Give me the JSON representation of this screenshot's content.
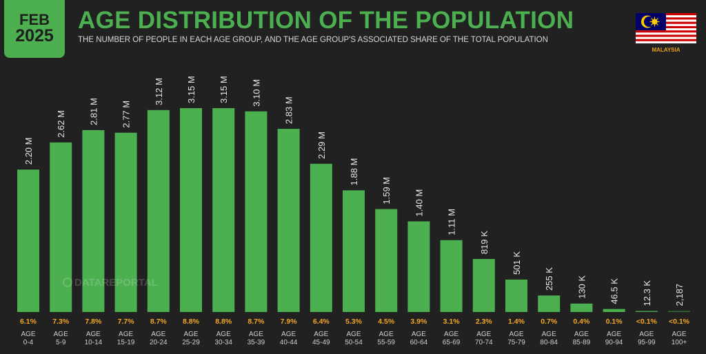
{
  "header": {
    "date_month": "FEB",
    "date_year": "2025",
    "title": "AGE DISTRIBUTION OF THE POPULATION",
    "subtitle": "THE NUMBER OF PEOPLE IN EACH AGE GROUP, AND THE AGE GROUP'S ASSOCIATED SHARE OF THE TOTAL POPULATION",
    "country": "MALAYSIA",
    "flag_icon": "malaysia-flag-icon"
  },
  "watermark": "DATAREPORTAL",
  "colors": {
    "background": "#212121",
    "bar": "#4caf50",
    "title": "#4caf50",
    "percent": "#f5a623",
    "country": "#e8a020"
  },
  "chart_data": {
    "type": "bar",
    "title": "AGE DISTRIBUTION OF THE POPULATION",
    "xlabel": "",
    "ylabel": "",
    "ylim": [
      0,
      3150000
    ],
    "grid": false,
    "categories": [
      "0-4",
      "5-9",
      "10-14",
      "15-19",
      "20-24",
      "25-29",
      "30-34",
      "35-39",
      "40-44",
      "45-49",
      "50-54",
      "55-59",
      "60-64",
      "65-69",
      "70-74",
      "75-79",
      "80-84",
      "85-89",
      "90-94",
      "95-99",
      "100+"
    ],
    "category_prefix": "AGE",
    "values": [
      2200000,
      2620000,
      2810000,
      2770000,
      3120000,
      3150000,
      3150000,
      3100000,
      2830000,
      2290000,
      1880000,
      1590000,
      1400000,
      1110000,
      819000,
      501000,
      255000,
      130000,
      46500,
      12300,
      2187
    ],
    "value_labels": [
      "2.20 M",
      "2.62 M",
      "2.81 M",
      "2.77 M",
      "3.12 M",
      "3.15 M",
      "3.15 M",
      "3.10 M",
      "2.83 M",
      "2.29 M",
      "1.88 M",
      "1.59 M",
      "1.40 M",
      "1.11 M",
      "819 K",
      "501 K",
      "255 K",
      "130 K",
      "46.5 K",
      "12.3 K",
      "2,187"
    ],
    "share_labels": [
      "6.1%",
      "7.3%",
      "7.8%",
      "7.7%",
      "8.7%",
      "8.8%",
      "8.8%",
      "8.7%",
      "7.9%",
      "6.4%",
      "5.3%",
      "4.5%",
      "3.9%",
      "3.1%",
      "2.3%",
      "1.4%",
      "0.7%",
      "0.4%",
      "0.1%",
      "<0.1%",
      "<0.1%"
    ]
  }
}
